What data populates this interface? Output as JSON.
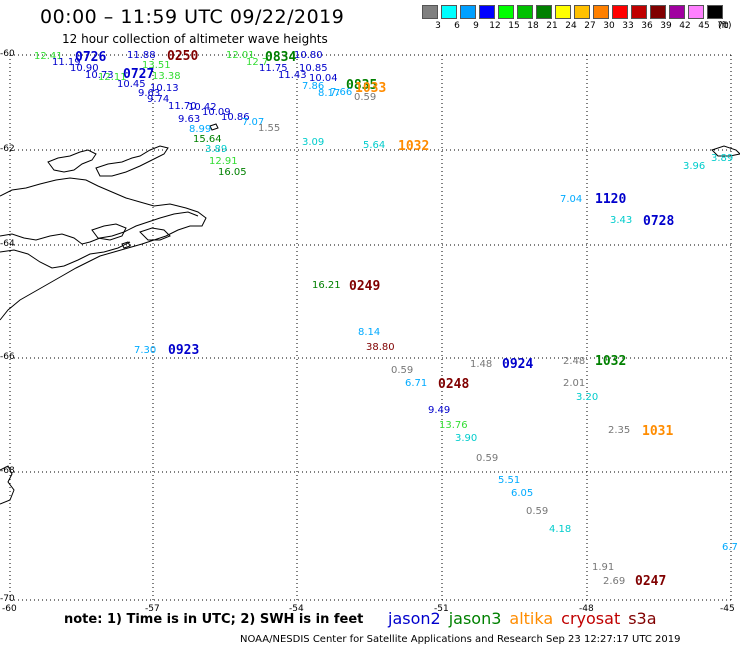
{
  "title": "00:00 – 11:59 UTC 09/22/2019",
  "subtitle": "12 hour collection of altimeter wave heights",
  "legend": {
    "unit": "(ft)",
    "ticks": [
      "3",
      "6",
      "9",
      "12",
      "15",
      "18",
      "21",
      "24",
      "27",
      "30",
      "33",
      "36",
      "39",
      "42",
      "45",
      "70"
    ],
    "colors": [
      "#808080",
      "#00ffff",
      "#00a0ff",
      "#0000ff",
      "#00ff00",
      "#00c000",
      "#008000",
      "#ffff00",
      "#ffc000",
      "#ff8000",
      "#ff0000",
      "#c00000",
      "#800000",
      "#a000a0",
      "#ff80ff",
      "#000000"
    ]
  },
  "axes": {
    "latitudes": [
      "-60",
      "-62",
      "-64",
      "-66",
      "-68",
      "-70"
    ],
    "longitudes": [
      "-60",
      "-57",
      "-54",
      "-51",
      "-48",
      "-45"
    ]
  },
  "chart_data": {
    "type": "scatter",
    "series": [
      {
        "name": "jason2",
        "color": "#0000cc",
        "points": [
          {
            "label": "0726"
          },
          {
            "label": "0727"
          },
          {
            "label": "0923"
          },
          {
            "label": "0924"
          },
          {
            "label": "1120"
          },
          {
            "label": "0728"
          }
        ]
      },
      {
        "name": "jason3",
        "color": "#008000",
        "points": [
          {
            "label": "0834"
          },
          {
            "label": "0835"
          },
          {
            "label": "1032"
          }
        ]
      },
      {
        "name": "altika",
        "color": "#ff8c00",
        "points": [
          {
            "label": "1033"
          },
          {
            "label": "1032"
          },
          {
            "label": "1031"
          }
        ]
      },
      {
        "name": "cryosat",
        "color": "#c00000",
        "points": [
          {
            "label": "0250"
          },
          {
            "label": "0249"
          },
          {
            "label": "0248"
          },
          {
            "label": "0247"
          }
        ]
      }
    ],
    "swh_values_ft": [
      "12.41",
      "11.19",
      "10.90",
      "10.73",
      "12.11",
      "11.88",
      "13.51",
      "13.38",
      "10.45",
      "10.13",
      "9.63",
      "9.74",
      "11.70",
      "10.42",
      "10.09",
      "10.86",
      "9.63",
      "8.99",
      "7.07",
      "1.55",
      "15.64",
      "3.89",
      "12.91",
      "16.05",
      "12.01",
      "12.7",
      "11.75",
      "11.43",
      "10.80",
      "10.85",
      "10.04",
      "7.86",
      "8.17",
      "7.66",
      "0.59",
      "3.09",
      "5.64",
      "7.04",
      "3.43",
      "3.96",
      "3.89",
      "16.21",
      "8.14",
      "38.80",
      "7.30",
      "1.48",
      "0.59",
      "6.71",
      "9.49",
      "13.76",
      "3.90",
      "0.59",
      "5.51",
      "6.05",
      "0.59",
      "4.18",
      "2.48",
      "2.01",
      "3.20",
      "2.35",
      "6.7",
      "1.91",
      "2.69"
    ]
  },
  "observations": [
    {
      "text": "12.41",
      "color": "#33dd33"
    },
    {
      "text": "11.19",
      "color": "#0000cc"
    },
    {
      "text": "0726",
      "color": "#0000cc",
      "tag": true
    },
    {
      "text": "10.90",
      "color": "#0000cc"
    },
    {
      "text": "10.73",
      "color": "#0000cc"
    },
    {
      "text": "12.11",
      "color": "#33dd33"
    },
    {
      "text": "11.88",
      "color": "#0000cc"
    },
    {
      "text": "0250",
      "color": "#800000",
      "tag": true
    },
    {
      "text": "13.51",
      "color": "#33dd33"
    },
    {
      "text": "0727",
      "color": "#0000cc",
      "tag": true
    },
    {
      "text": "13.38",
      "color": "#33dd33"
    },
    {
      "text": "10.45",
      "color": "#0000cc"
    },
    {
      "text": "10.13",
      "color": "#0000cc"
    },
    {
      "text": "9.63",
      "color": "#0000cc"
    },
    {
      "text": "9.74",
      "color": "#0000cc"
    },
    {
      "text": "11.70",
      "color": "#0000cc"
    },
    {
      "text": "10.42",
      "color": "#0000cc"
    },
    {
      "text": "10.09",
      "color": "#0000cc"
    },
    {
      "text": "10.86",
      "color": "#0000cc"
    },
    {
      "text": "9.63",
      "color": "#0000cc"
    },
    {
      "text": "8.99",
      "color": "#00aaff"
    },
    {
      "text": "7.07",
      "color": "#00aaff"
    },
    {
      "text": "1.55",
      "color": "#777777"
    },
    {
      "text": "15.64",
      "color": "#008000"
    },
    {
      "text": "3.89",
      "color": "#00cccc"
    },
    {
      "text": "12.91",
      "color": "#33dd33"
    },
    {
      "text": "16.05",
      "color": "#008000"
    },
    {
      "text": "12.01",
      "color": "#33dd33"
    },
    {
      "text": "12.7",
      "color": "#33dd33"
    },
    {
      "text": "0834",
      "color": "#008000",
      "tag": true
    },
    {
      "text": "10.80",
      "color": "#0000cc"
    },
    {
      "text": "11.75",
      "color": "#0000cc"
    },
    {
      "text": "10.85",
      "color": "#0000cc"
    },
    {
      "text": "11.43",
      "color": "#0000cc"
    },
    {
      "text": "10.04",
      "color": "#0000cc"
    },
    {
      "text": "7.86",
      "color": "#00aaff"
    },
    {
      "text": "0835",
      "color": "#008000",
      "tag": true
    },
    {
      "text": "8.17",
      "color": "#00aaff"
    },
    {
      "text": "7.66",
      "color": "#00aaff"
    },
    {
      "text": "1033",
      "color": "#ff8c00",
      "tag": true
    },
    {
      "text": "0.59",
      "color": "#777777"
    },
    {
      "text": "3.09",
      "color": "#00cccc"
    },
    {
      "text": "5.64",
      "color": "#00cccc"
    },
    {
      "text": "1032",
      "color": "#ff8c00",
      "tag": true
    },
    {
      "text": "3.89",
      "color": "#00cccc"
    },
    {
      "text": "3.96",
      "color": "#00cccc"
    },
    {
      "text": "7.04",
      "color": "#00aaff"
    },
    {
      "text": "1120",
      "color": "#0000cc",
      "tag": true
    },
    {
      "text": "3.43",
      "color": "#00cccc"
    },
    {
      "text": "0728",
      "color": "#0000cc",
      "tag": true
    },
    {
      "text": "16.21",
      "color": "#008000"
    },
    {
      "text": "0249",
      "color": "#800000",
      "tag": true
    },
    {
      "text": "8.14",
      "color": "#00aaff"
    },
    {
      "text": "38.80",
      "color": "#800000"
    },
    {
      "text": "7.30",
      "color": "#00aaff"
    },
    {
      "text": "0923",
      "color": "#0000cc",
      "tag": true
    },
    {
      "text": "1.48",
      "color": "#777777"
    },
    {
      "text": "0924",
      "color": "#0000cc",
      "tag": true
    },
    {
      "text": "2.48",
      "color": "#777777"
    },
    {
      "text": "1032",
      "color": "#008000",
      "tag": true
    },
    {
      "text": "0.59",
      "color": "#777777"
    },
    {
      "text": "6.71",
      "color": "#00aaff"
    },
    {
      "text": "0248",
      "color": "#800000",
      "tag": true
    },
    {
      "text": "2.01",
      "color": "#777777"
    },
    {
      "text": "3.20",
      "color": "#00cccc"
    },
    {
      "text": "9.49",
      "color": "#0000cc"
    },
    {
      "text": "13.76",
      "color": "#33dd33"
    },
    {
      "text": "3.90",
      "color": "#00cccc"
    },
    {
      "text": "2.35",
      "color": "#777777"
    },
    {
      "text": "1031",
      "color": "#ff8c00",
      "tag": true
    },
    {
      "text": "0.59",
      "color": "#777777"
    },
    {
      "text": "5.51",
      "color": "#00aaff"
    },
    {
      "text": "6.05",
      "color": "#00aaff"
    },
    {
      "text": "0.59",
      "color": "#777777"
    },
    {
      "text": "4.18",
      "color": "#00cccc"
    },
    {
      "text": "6.7",
      "color": "#00aaff"
    },
    {
      "text": "1.91",
      "color": "#777777"
    },
    {
      "text": "2.69",
      "color": "#777777"
    },
    {
      "text": "0247",
      "color": "#800000",
      "tag": true
    }
  ],
  "note": "note: 1) Time is in UTC; 2) SWH is in feet",
  "satellites": [
    {
      "name": "jason2",
      "color": "#0000cc"
    },
    {
      "name": "jason3",
      "color": "#008000"
    },
    {
      "name": "altika",
      "color": "#ff8c00"
    },
    {
      "name": "cryosat",
      "color": "#c00000"
    },
    {
      "name": "s3a",
      "color": "#800000"
    }
  ],
  "footer": "NOAA/NESDIS Center for Satellite Applications and Research    Sep 23 12:27:17 UTC 2019"
}
